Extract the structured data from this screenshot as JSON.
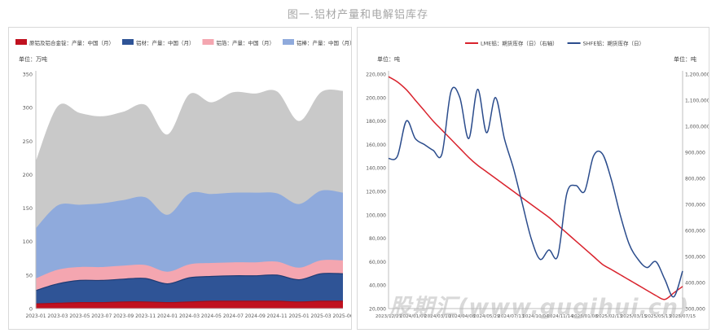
{
  "figure_title": "图一.铝材产量和电解铝库存",
  "watermark": "股期汇(www.gugihui.cn)",
  "chart_data": [
    {
      "type": "area",
      "stacked": true,
      "unit_label": "单位：万吨",
      "x": [
        "2023-01",
        "2023-03",
        "2023-05",
        "2023-07",
        "2023-09",
        "2023-11",
        "2024-01",
        "2024-03",
        "2024-05",
        "2024-07",
        "2024-09",
        "2024-11",
        "2025-01",
        "2025-03",
        "2025-06"
      ],
      "ylim": [
        0,
        350
      ],
      "yticks": [
        0,
        50,
        100,
        150,
        200,
        250,
        300,
        350
      ],
      "legend_position": "top",
      "grid": false,
      "series": [
        {
          "name": "原铝及铝合金锭：产量：中国（月）",
          "color": "#c0111f",
          "values": [
            7,
            8,
            9,
            9,
            10,
            10,
            9,
            10,
            11,
            11,
            11,
            11,
            10,
            11,
            11
          ]
        },
        {
          "name": "铝材：产量：中国（月）",
          "color": "#2f5496",
          "values": [
            20,
            29,
            33,
            33,
            34,
            35,
            28,
            36,
            37,
            38,
            38,
            39,
            33,
            41,
            41
          ]
        },
        {
          "name": "铝箔：产量：中国（月）",
          "color": "#f4a6b0",
          "values": [
            18,
            21,
            20,
            20,
            20,
            20,
            18,
            20,
            20,
            20,
            20,
            20,
            18,
            20,
            20
          ]
        },
        {
          "name": "铝棒：产量：中国（月）",
          "color": "#8faadc",
          "values": [
            75,
            96,
            93,
            95,
            98,
            101,
            85,
            106,
            103,
            104,
            104,
            102,
            95,
            104,
            101
          ]
        },
        {
          "name": "铝锭：产量：中国（月）",
          "color": "#c9c9c9",
          "values": [
            100,
            148,
            137,
            130,
            132,
            138,
            120,
            148,
            137,
            150,
            148,
            152,
            124,
            147,
            152
          ]
        }
      ]
    },
    {
      "type": "line",
      "left_unit_label": "单位：吨",
      "right_unit_label": "单位：吨",
      "x_ticks": [
        "2023/12/27",
        "2024/01/07",
        "2024/03/10",
        "2024/04/08",
        "2024/05/29",
        "2024/07/13",
        "2024/10/04",
        "2024/11/14",
        "2025/01/08",
        "2025/02/13",
        "2025/03/15",
        "2025/05/13",
        "2025/07/15"
      ],
      "left_ylim": [
        20000,
        220000
      ],
      "left_yticks": [
        "20,000",
        "40,000",
        "60,000",
        "80,000",
        "100,000",
        "120,000",
        "140,000",
        "160,000",
        "180,000",
        "200,000",
        "220,000"
      ],
      "right_ylim": [
        300000,
        1200000
      ],
      "right_yticks": [
        "300,000",
        "400,000",
        "500,000",
        "600,000",
        "700,000",
        "800,000",
        "900,000",
        "1,000,000",
        "1,100,000",
        "1,200,000"
      ],
      "legend_position": "top",
      "grid": false,
      "series": [
        {
          "name": "LME铝：期货库存（日）（右轴）",
          "color": "#d9232d",
          "axis": "right",
          "values": [
            1190000,
            1170000,
            1140000,
            1100000,
            1060000,
            1020000,
            985000,
            950000,
            915000,
            880000,
            850000,
            825000,
            800000,
            775000,
            750000,
            725000,
            700000,
            675000,
            650000,
            620000,
            590000,
            560000,
            530000,
            500000,
            470000,
            450000,
            430000,
            410000,
            390000,
            370000,
            350000,
            335000,
            360000,
            385000
          ]
        },
        {
          "name": "SHFE铝：期货库存（日）",
          "color": "#2b4c8c",
          "axis": "left",
          "values": [
            148000,
            150000,
            180000,
            165000,
            160000,
            155000,
            152000,
            205000,
            200000,
            165000,
            207000,
            170000,
            200000,
            165000,
            140000,
            110000,
            80000,
            62000,
            70000,
            65000,
            118000,
            125000,
            120000,
            150000,
            152000,
            130000,
            100000,
            75000,
            62000,
            55000,
            60000,
            45000,
            30000,
            52000
          ]
        }
      ]
    }
  ]
}
